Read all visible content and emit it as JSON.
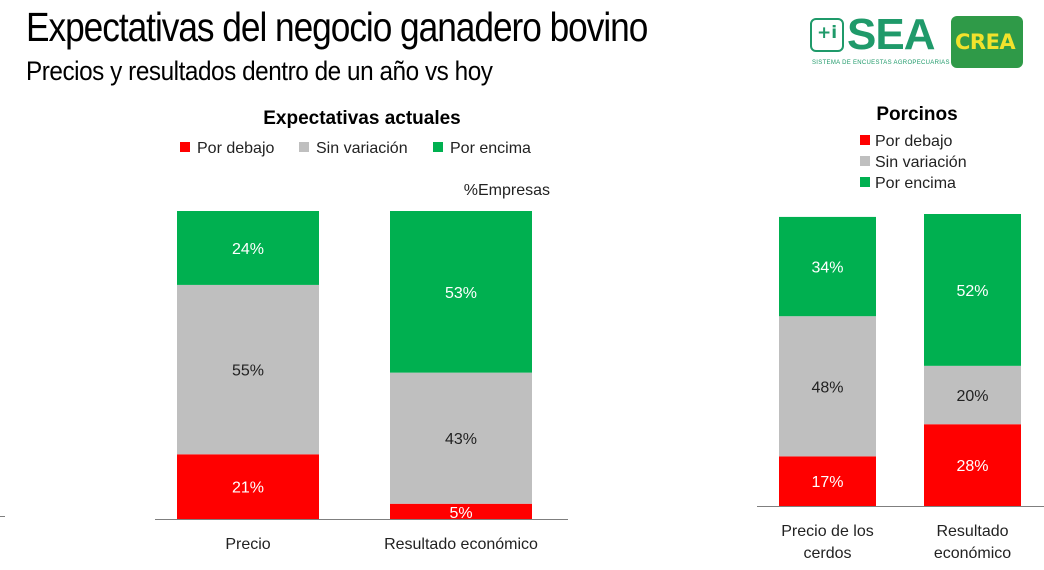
{
  "header": {
    "title": "Expectativas del negocio ganadero bovino",
    "subtitle": "Precios y resultados dentro de un año vs hoy"
  },
  "logos": {
    "sea": {
      "icon_text": "+i",
      "word": "SEA",
      "subtitle": "SISTEMA DE ENCUESTAS AGROPECUARIAS"
    },
    "crea": {
      "word": "CREA"
    }
  },
  "colors": {
    "below": "#ff0000",
    "nochange": "#bfbfbf",
    "above": "#00b050",
    "sea_green": "#1f9a6a",
    "crea_green": "#2f9a48",
    "crea_yellow": "#f2e22c"
  },
  "chart_data": [
    {
      "type": "bar",
      "stacked": true,
      "title": "Expectativas actuales",
      "ylabel": "%Empresas",
      "legend_position": "top",
      "categories": [
        "Precio",
        "Resultado económico"
      ],
      "series": [
        {
          "name": "Por debajo",
          "values": [
            21,
            5
          ],
          "labels": [
            "21%",
            "5%"
          ]
        },
        {
          "name": "Sin variación",
          "values": [
            55,
            43
          ],
          "labels": [
            "55%",
            "43%"
          ]
        },
        {
          "name": "Por encima",
          "values": [
            24,
            53
          ],
          "labels": [
            "24%",
            "53%"
          ]
        }
      ],
      "ylim": [
        0,
        100
      ],
      "grid": false
    },
    {
      "type": "bar",
      "stacked": true,
      "title": "Porcinos",
      "legend_position": "top",
      "categories": [
        [
          "Precio de los",
          "cerdos"
        ],
        [
          "Resultado",
          "económico"
        ]
      ],
      "series": [
        {
          "name": "Por debajo",
          "values": [
            17,
            28
          ],
          "labels": [
            "17%",
            "28%"
          ]
        },
        {
          "name": "Sin variación",
          "values": [
            48,
            20
          ],
          "labels": [
            "48%",
            "20%"
          ]
        },
        {
          "name": "Por encima",
          "values": [
            34,
            52
          ],
          "labels": [
            "34%",
            "52%"
          ]
        }
      ],
      "ylim": [
        0,
        100
      ],
      "grid": false
    }
  ]
}
